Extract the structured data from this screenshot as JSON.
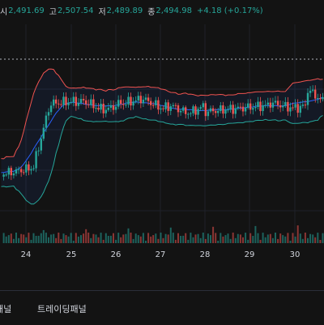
{
  "ohlc": {
    "open_label": "시",
    "open": "2,491.69",
    "high_label": "고",
    "high": "2,507.54",
    "low_label": "저",
    "low": "2,489.89",
    "close_label": "종",
    "close": "2,494.98",
    "change": "+4.18 (+0.17%)"
  },
  "bottom_tabs": [
    {
      "label": "패널"
    },
    {
      "label": "트레이딩패널"
    }
  ],
  "colors": {
    "up": "#26a69a",
    "down": "#ef5350",
    "bb_upper": "#ef5350",
    "bb_lower": "#26a69a",
    "bb_basis": "#2962ff"
  },
  "chart_data": {
    "type": "candlestick",
    "x_ticks": [
      "24",
      "25",
      "26",
      "27",
      "28",
      "29",
      "30"
    ],
    "indicators": [
      "bollinger_bands",
      "volume"
    ],
    "grid": true
  }
}
